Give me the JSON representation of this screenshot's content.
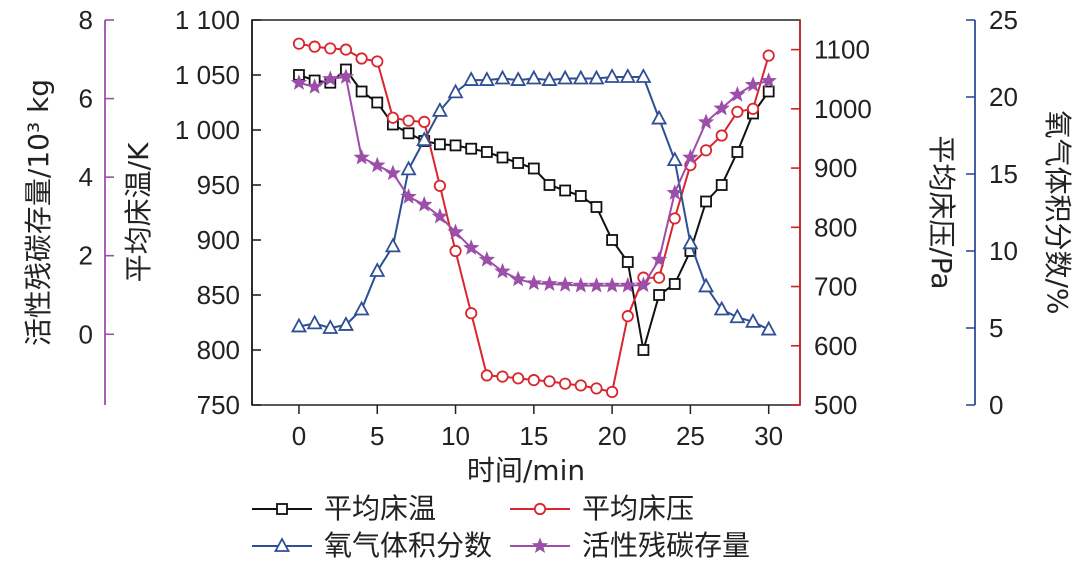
{
  "chart_data": {
    "type": "line",
    "xlabel": "时间/min",
    "x_ticks": [
      "0",
      "5",
      "10",
      "15",
      "20",
      "25",
      "30"
    ],
    "xlim": [
      -3,
      32
    ],
    "axes": {
      "carbon": {
        "label": "活性残碳存量/10³ kg",
        "ticks": [
          "0",
          "2",
          "4",
          "6",
          "8"
        ],
        "range": [
          -1.8,
          8
        ],
        "color": "#9b4fa8"
      },
      "temp": {
        "label": "平均床温/K",
        "ticks": [
          "750",
          "800",
          "850",
          "900",
          "950",
          "1 000",
          "1 050",
          "1 100"
        ],
        "range": [
          750,
          1100
        ],
        "color": "#222222"
      },
      "pressure": {
        "label": "平均床压/Pa",
        "ticks": [
          "500",
          "600",
          "700",
          "800",
          "900",
          "1000",
          "1100"
        ],
        "range": [
          500,
          1150
        ],
        "color": "#c8232c"
      },
      "oxygen": {
        "label": "氧气体积分数/%",
        "ticks": [
          "0",
          "5",
          "10",
          "15",
          "20",
          "25"
        ],
        "range": [
          0,
          25
        ],
        "color": "#2f4f95"
      }
    },
    "x": [
      0,
      1,
      2,
      3,
      4,
      5,
      6,
      7,
      8,
      9,
      10,
      11,
      12,
      13,
      14,
      15,
      16,
      17,
      18,
      19,
      20,
      21,
      22,
      23,
      24,
      25,
      26,
      27,
      28,
      29,
      30
    ],
    "series": [
      {
        "name": "平均床温",
        "axis": "temp",
        "color": "#111111",
        "marker": "square",
        "values": [
          1050,
          1045,
          1043,
          1055,
          1035,
          1025,
          1005,
          997,
          990,
          987,
          986,
          983,
          980,
          975,
          970,
          965,
          950,
          945,
          940,
          930,
          900,
          880,
          800,
          850,
          860,
          890,
          935,
          950,
          980,
          1015,
          1035
        ]
      },
      {
        "name": "平均床压",
        "axis": "pressure",
        "color": "#d9262e",
        "marker": "circle",
        "values": [
          1110,
          1105,
          1102,
          1100,
          1085,
          1080,
          985,
          980,
          978,
          870,
          760,
          655,
          550,
          548,
          545,
          542,
          540,
          536,
          533,
          528,
          522,
          650,
          715,
          715,
          815,
          905,
          930,
          955,
          995,
          1000,
          1090
        ]
      },
      {
        "name": "氧气体积分数",
        "axis": "oxygen",
        "color": "#2f4f95",
        "marker": "triangle",
        "values": [
          5.1,
          5.3,
          5.0,
          5.2,
          6.2,
          8.7,
          10.3,
          15.3,
          17.2,
          19.1,
          20.3,
          21.1,
          21.1,
          21.2,
          21.1,
          21.2,
          21.1,
          21.2,
          21.2,
          21.2,
          21.3,
          21.3,
          21.3,
          18.6,
          15.9,
          10.5,
          7.7,
          6.2,
          5.7,
          5.4,
          4.9
        ]
      },
      {
        "name": "活性残碳存量",
        "axis": "carbon",
        "color": "#9b4fa8",
        "marker": "star",
        "values": [
          6.4,
          6.3,
          6.5,
          6.55,
          4.5,
          4.3,
          4.1,
          3.5,
          3.3,
          3.0,
          2.6,
          2.2,
          1.9,
          1.6,
          1.4,
          1.3,
          1.28,
          1.26,
          1.24,
          1.24,
          1.24,
          1.24,
          1.25,
          1.9,
          3.6,
          4.5,
          5.4,
          5.75,
          6.1,
          6.35,
          6.45
        ]
      }
    ],
    "legend": [
      "平均床温",
      "平均床压",
      "氧气体积分数",
      "活性残碳存量"
    ],
    "legend_position": "bottom"
  }
}
